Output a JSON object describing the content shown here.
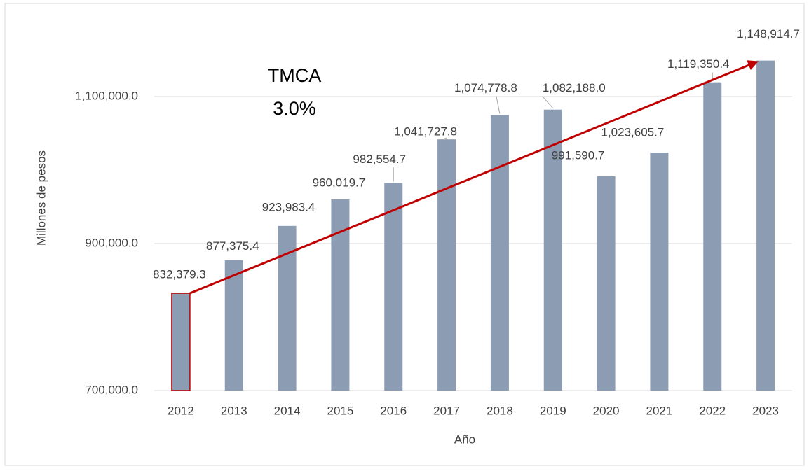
{
  "chart_data": {
    "type": "bar",
    "annotation": [
      "TMCA",
      "3.0%"
    ],
    "x_label": "Año",
    "y_label": "Millones de pesos",
    "categories": [
      "2012",
      "2013",
      "2014",
      "2015",
      "2016",
      "2017",
      "2018",
      "2019",
      "2020",
      "2021",
      "2022",
      "2023"
    ],
    "values": [
      832379.3,
      877375.4,
      923983.4,
      960019.7,
      982554.7,
      1041727.8,
      1074778.8,
      1082188.0,
      991590.7,
      1023605.7,
      1119350.4,
      1148914.7
    ],
    "value_labels": [
      "832,379.3",
      "877,375.4",
      "923,983.4",
      "960,019.7",
      "982,554.7",
      "1,041,727.8",
      "1,074,778.8",
      "1,082,188.0",
      "991,590.7",
      "1,023,605.7",
      "1,119,350.4",
      "1,148,914.7"
    ],
    "color": "#8c9cb2",
    "ylim": [
      700000,
      1200000
    ],
    "yticks": [
      {
        "value": 700000,
        "label": "700,000.0"
      },
      {
        "value": 900000,
        "label": "900,000.0"
      },
      {
        "value": 1100000,
        "label": "1,100,000.0"
      }
    ],
    "grid": true
  }
}
